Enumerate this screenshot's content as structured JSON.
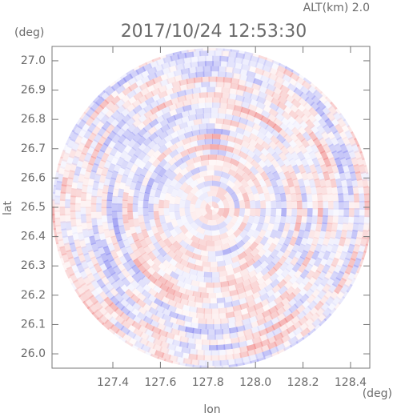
{
  "chart_data": {
    "type": "radar-ppi",
    "title": "2017/10/24 12:53:30",
    "annotation": "ALT(km) 2.0",
    "x_label": "lon",
    "y_label": "lat",
    "x_unit": "(deg)",
    "y_unit": "(deg)",
    "xlim": [
      127.144,
      128.481
    ],
    "ylim": [
      25.951,
      27.049
    ],
    "xticks": [
      {
        "value": 127.4,
        "label": "127.4"
      },
      {
        "value": 127.6,
        "label": "127.6"
      },
      {
        "value": 127.8,
        "label": "127.8"
      },
      {
        "value": 128.0,
        "label": "128.0"
      },
      {
        "value": 128.2,
        "label": "128.2"
      },
      {
        "value": 128.4,
        "label": "128.4"
      }
    ],
    "yticks": [
      {
        "value": 26.0,
        "label": "26.0"
      },
      26.1,
      26.2,
      26.3,
      26.4,
      26.5,
      26.6,
      26.7,
      26.8,
      26.9,
      {
        "value": 27.0,
        "label": "27.0"
      }
    ],
    "center": [
      127.818,
      26.497
    ],
    "colors": {
      "positive": "#f08c8c",
      "negative": "#8c8cf0"
    }
  }
}
